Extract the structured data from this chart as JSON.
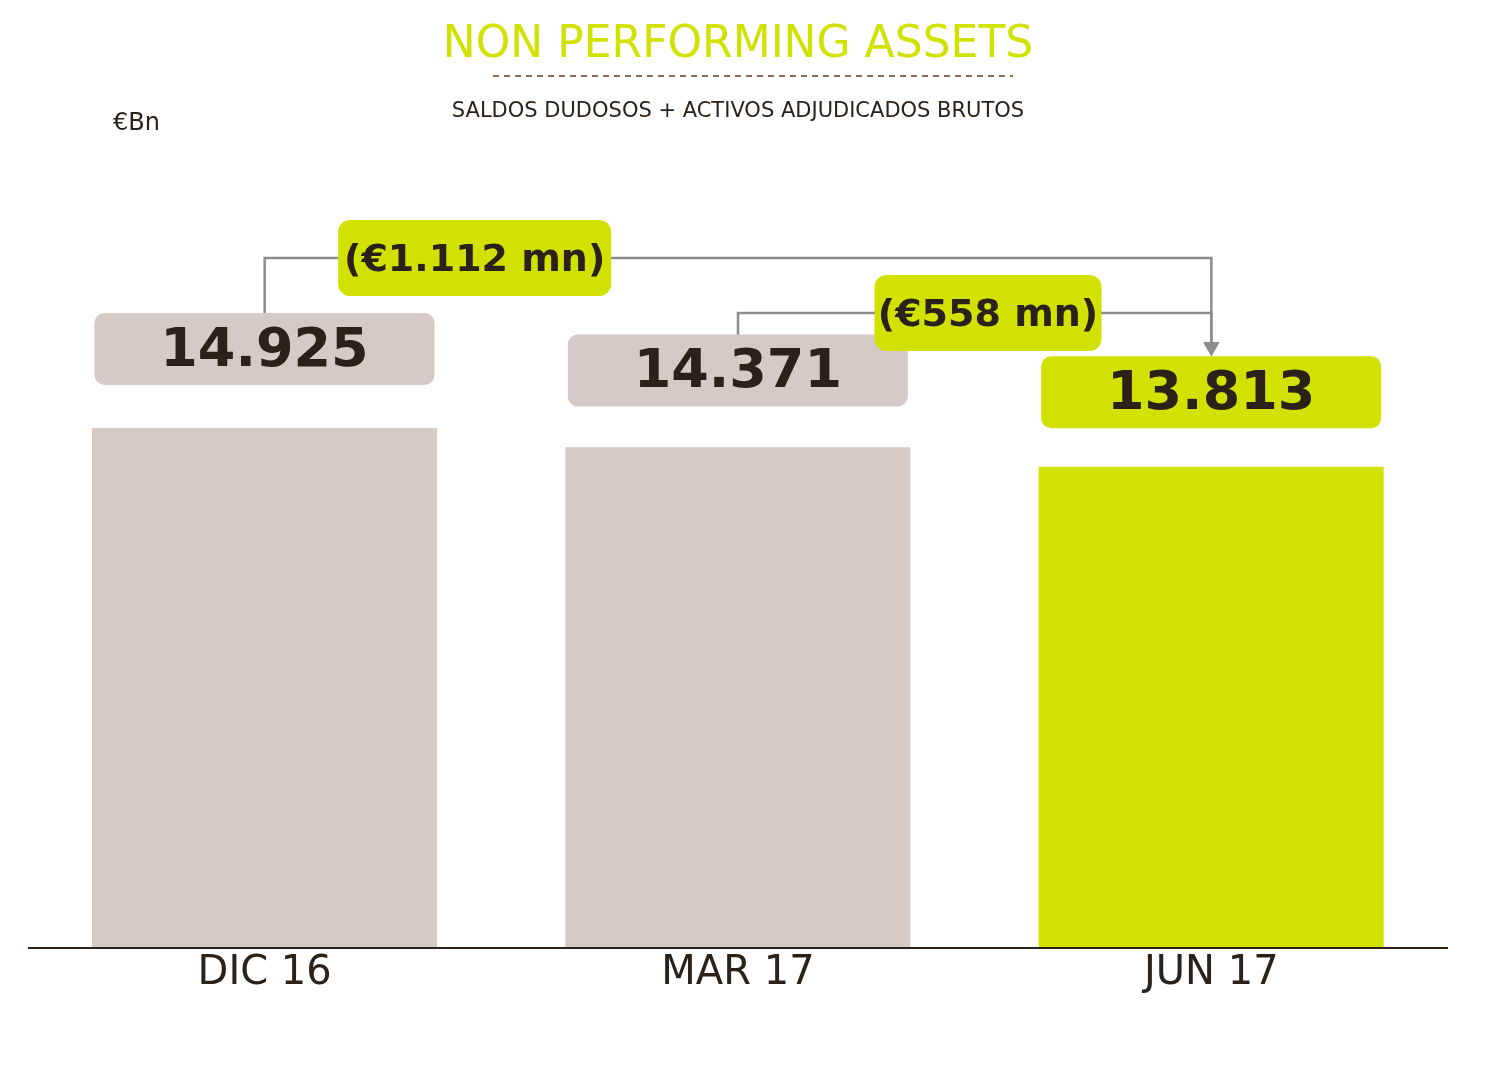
{
  "chart_data": {
    "type": "bar",
    "title": "NON PERFORMING ASSETS",
    "subtitle": "SALDOS DUDOSOS + ACTIVOS ADJUDICADOS BRUTOS",
    "categories": [
      "DIC 16",
      "MAR 17",
      "JUN 17"
    ],
    "values": [
      14.925,
      14.371,
      13.813
    ],
    "colors": [
      "#d5cac5",
      "#d5cac5",
      "#d1e203"
    ],
    "value_labels": [
      "14.925",
      "14.371",
      "13.813"
    ],
    "annotations": [
      "€Bn",
      "(€1.112 mn)",
      "(€558 mn)"
    ]
  }
}
